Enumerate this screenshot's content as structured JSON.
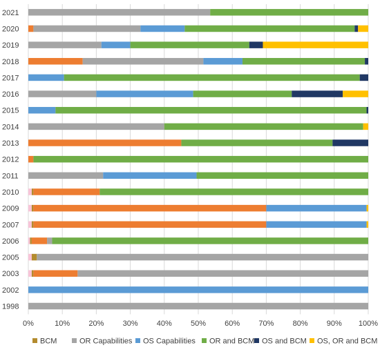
{
  "chart_data": {
    "type": "bar",
    "orientation": "horizontal",
    "stacked": true,
    "normalized": true,
    "title": "",
    "xlabel": "",
    "ylabel": "",
    "xlim": [
      0,
      100
    ],
    "x_ticks": [
      "0%",
      "10%",
      "20%",
      "30%",
      "40%",
      "50%",
      "60%",
      "70%",
      "80%",
      "90%",
      "100%"
    ],
    "grid": "vertical",
    "legend_position": "bottom",
    "categories": [
      "2021",
      "2020",
      "2019",
      "2018",
      "2017",
      "2016",
      "2015",
      "2014",
      "2013",
      "2012",
      "2011",
      "2010",
      "2009",
      "2007",
      "2006",
      "2005",
      "2003",
      "2002",
      "1998"
    ],
    "series": [
      {
        "name": "",
        "color": "#F8C4D8",
        "values": [
          0,
          0,
          0,
          0,
          0,
          0,
          0,
          0,
          0,
          0,
          0,
          1.0,
          1.0,
          1.0,
          0.5,
          1.0,
          1.0,
          0,
          0
        ]
      },
      {
        "name": "BCM",
        "color": "#B38B2E",
        "values": [
          0,
          0,
          0,
          0,
          0,
          0,
          0,
          0,
          0,
          0,
          0,
          0.5,
          0.5,
          0.5,
          0.5,
          1.5,
          0.5,
          0,
          0
        ]
      },
      {
        "name": "",
        "color": "#ED7D31",
        "values": [
          0,
          1.5,
          0,
          16,
          0,
          0,
          0,
          0,
          45,
          1.5,
          0,
          19.5,
          68.5,
          68.5,
          4.5,
          0,
          13,
          0,
          0
        ]
      },
      {
        "name": "OR Capabilities",
        "color": "#A5A5A5",
        "values": [
          53.5,
          31.5,
          21.5,
          35.5,
          0,
          20,
          0,
          40,
          0,
          0,
          22,
          0,
          0,
          0,
          1.5,
          97.5,
          85.5,
          0,
          100
        ]
      },
      {
        "name": "OS Capabilities",
        "color": "#5B9BD5",
        "values": [
          0,
          13,
          8.5,
          11.5,
          10.5,
          28.5,
          8,
          0,
          0,
          0,
          27.5,
          0,
          29.5,
          29.5,
          0,
          0,
          0,
          100,
          0
        ]
      },
      {
        "name": "OR and BCM",
        "color": "#70AD47",
        "values": [
          46.5,
          50,
          35,
          36,
          87,
          29,
          91.5,
          58.5,
          44.5,
          98.5,
          50.5,
          79,
          0,
          0,
          93,
          0,
          0,
          0,
          0
        ]
      },
      {
        "name": "OS and BCM",
        "color": "#203864",
        "values": [
          0,
          1,
          4,
          1,
          2.5,
          15,
          0.5,
          0,
          10.5,
          0,
          0,
          0,
          0,
          0,
          0,
          0,
          0,
          0,
          0
        ]
      },
      {
        "name": "OS, OR and BCM",
        "color": "#FFC000",
        "values": [
          0,
          3,
          31,
          0,
          0,
          7.5,
          0,
          1.5,
          0,
          0,
          0,
          0,
          0.5,
          0.5,
          0,
          0,
          0,
          0,
          0
        ]
      }
    ]
  }
}
